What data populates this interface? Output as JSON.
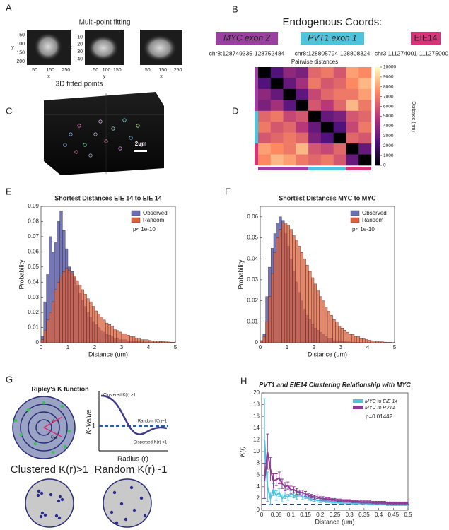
{
  "panel_labels": [
    "A",
    "B",
    "C",
    "D",
    "E",
    "F",
    "G",
    "H"
  ],
  "panel_a": {
    "title": "Multi-point fitting",
    "plots": [
      {
        "xlabel": "x",
        "ylabel": "y",
        "xlim": [
          0,
          280
        ],
        "ylim": [
          20,
          220
        ],
        "xticks": [
          50,
          150,
          250
        ],
        "yticks": [
          50,
          100,
          150,
          200
        ]
      },
      {
        "xlabel": "y",
        "ylabel": "z",
        "xlim": [
          0,
          180
        ],
        "ylim": [
          0,
          48
        ],
        "xticks": [
          50,
          100,
          150
        ],
        "yticks": [
          10,
          20,
          30,
          40
        ]
      },
      {
        "xlabel": "x",
        "xlim": [
          0,
          280
        ],
        "xticks": [
          50,
          150,
          250
        ]
      }
    ]
  },
  "panel_b": {
    "title": "Endogenous Coords:",
    "loci": [
      {
        "name": "MYC exon 2",
        "color": "#9b3fa0",
        "coords": "chr8:128749335-128752484"
      },
      {
        "name": "PVT1 exon 1",
        "color": "#4fc3dc",
        "coords": "chr8:128805794-128808324"
      },
      {
        "name": "EIE14",
        "color": "#d6337a",
        "coords": "chr3:111274001-111275000"
      }
    ]
  },
  "panel_c": {
    "title": "3D fitted points",
    "scale_bar": "2um"
  },
  "panel_d": {
    "title": "Pairwise distances",
    "colorbar_label": "Distance (nm)",
    "clim": [
      0,
      10000
    ],
    "ticks": [
      0,
      1000,
      2000,
      3000,
      4000,
      5000,
      6000,
      7000,
      8000,
      9000,
      10000
    ],
    "matrix": [
      [
        0,
        2500,
        4000,
        3500,
        6500,
        7000,
        6000,
        8000,
        7500
      ],
      [
        2500,
        0,
        3000,
        4500,
        7000,
        6000,
        6500,
        7500,
        8500
      ],
      [
        4000,
        3000,
        0,
        2800,
        5500,
        6500,
        7000,
        7000,
        8000
      ],
      [
        3500,
        4500,
        2800,
        0,
        6000,
        5000,
        6500,
        8500,
        7000
      ],
      [
        6500,
        7000,
        5500,
        6000,
        0,
        3000,
        3500,
        6000,
        6500
      ],
      [
        7000,
        6000,
        6500,
        5000,
        3000,
        0,
        2500,
        5500,
        7000
      ],
      [
        6000,
        6500,
        7000,
        6500,
        3500,
        2500,
        0,
        6500,
        6000
      ],
      [
        8000,
        7500,
        7000,
        8500,
        6000,
        5500,
        6500,
        0,
        3000
      ],
      [
        7500,
        8500,
        8000,
        7000,
        6500,
        7000,
        6000,
        3000,
        0
      ]
    ]
  },
  "panel_g": {
    "title": "Ripley's K function",
    "ylabel": "K-Value",
    "xlabel": "Radius (r)",
    "one_label": "1",
    "curve_labels": [
      "Clustered K(r) >1",
      "Random K(r)~1",
      "Dispersed K(r) <1"
    ],
    "radius_label": "r",
    "radius_next_label": "r",
    "radius_next_subscript": "i+1",
    "examples": [
      "Clustered K(r)>1",
      "Random K(r)~1"
    ]
  },
  "chart_data": [
    {
      "type": "histogram",
      "title": "Shortest Distances EIE 14 to EIE 14",
      "xlabel": "Distance (um)",
      "ylabel": "Probability",
      "annotation": "p< 1e-10",
      "bins": [
        0,
        0.1,
        0.2,
        0.3,
        0.4,
        0.5,
        0.6,
        0.7,
        0.8,
        0.9,
        1,
        1.1,
        1.2,
        1.3,
        1.4,
        1.5,
        1.6,
        1.7,
        1.8,
        1.9,
        2,
        2.1,
        2.2,
        2.3,
        2.4,
        2.5,
        2.6,
        2.7,
        2.8,
        2.9,
        3,
        3.1,
        3.2,
        3.3,
        3.4,
        3.5,
        3.6,
        3.7,
        3.8,
        3.9,
        4,
        4.1,
        4.2,
        4.3,
        4.4,
        4.5,
        4.6,
        4.7,
        4.8,
        4.9,
        5
      ],
      "series": [
        {
          "name": "Observed",
          "color": "#6b6fb5",
          "values": [
            0.004,
            0.027,
            0.045,
            0.07,
            0.06,
            0.066,
            0.08,
            0.087,
            0.074,
            0.062,
            0.05,
            0.047,
            0.043,
            0.038,
            0.033,
            0.028,
            0.024,
            0.02,
            0.017,
            0.014,
            0.012,
            0.01,
            0.008,
            0.007,
            0.006,
            0.005,
            0.004,
            0.003,
            0.003,
            0.002,
            0.002,
            0.002,
            0.001,
            0.001,
            0.001,
            0.001,
            0.001,
            0.0005,
            0.0005,
            0.0005,
            0.0005,
            0.0003,
            0.0003,
            0.0003,
            0.0002,
            0.0002,
            0.0002,
            0.0001,
            0.0001,
            0.0001
          ]
        },
        {
          "name": "Random",
          "color": "#e0603a",
          "values": [
            0.002,
            0.008,
            0.015,
            0.02,
            0.027,
            0.035,
            0.04,
            0.044,
            0.047,
            0.049,
            0.048,
            0.046,
            0.044,
            0.041,
            0.038,
            0.035,
            0.032,
            0.029,
            0.027,
            0.024,
            0.021,
            0.019,
            0.017,
            0.015,
            0.013,
            0.012,
            0.011,
            0.009,
            0.008,
            0.007,
            0.006,
            0.006,
            0.005,
            0.004,
            0.004,
            0.003,
            0.003,
            0.002,
            0.002,
            0.002,
            0.0015,
            0.0013,
            0.0011,
            0.001,
            0.0008,
            0.0007,
            0.0006,
            0.0005,
            0.0004,
            0.0003
          ]
        }
      ],
      "xlim": [
        0,
        5
      ],
      "ylim": [
        0,
        0.09
      ],
      "xticks": [
        0,
        1,
        2,
        3,
        4,
        5
      ],
      "yticks": [
        0,
        0.01,
        0.02,
        0.03,
        0.04,
        0.05,
        0.06,
        0.07,
        0.08,
        0.09
      ],
      "legend": "upper right"
    },
    {
      "type": "histogram",
      "title": "Shortest Distances MYC to MYC",
      "xlabel": "Distance (um)",
      "ylabel": "Probability",
      "annotation": "p< 1e-10",
      "bins": [
        0,
        0.1,
        0.2,
        0.3,
        0.4,
        0.5,
        0.6,
        0.7,
        0.8,
        0.9,
        1,
        1.1,
        1.2,
        1.3,
        1.4,
        1.5,
        1.6,
        1.7,
        1.8,
        1.9,
        2,
        2.1,
        2.2,
        2.3,
        2.4,
        2.5,
        2.6,
        2.7,
        2.8,
        2.9,
        3,
        3.1,
        3.2,
        3.3,
        3.4,
        3.5,
        3.6,
        3.7,
        3.8,
        3.9,
        4,
        4.1,
        4.2,
        4.3,
        4.4,
        4.5,
        4.6,
        4.7,
        4.8,
        4.9,
        5
      ],
      "series": [
        {
          "name": "Observed",
          "color": "#6b6fb5",
          "values": [
            0.001,
            0.004,
            0.022,
            0.036,
            0.045,
            0.052,
            0.057,
            0.06,
            0.058,
            0.052,
            0.046,
            0.04,
            0.034,
            0.029,
            0.024,
            0.02,
            0.016,
            0.013,
            0.011,
            0.009,
            0.007,
            0.006,
            0.005,
            0.004,
            0.003,
            0.002,
            0.002,
            0.001,
            0.001,
            0.001,
            0.0008,
            0.0006,
            0.0005,
            0.0004,
            0.0003,
            0.0002,
            0.0002,
            0.0001,
            0.0001,
            0.0001,
            0.0001,
            0,
            0,
            0,
            0,
            0,
            0,
            0,
            0,
            0
          ]
        },
        {
          "name": "Random",
          "color": "#e0603a",
          "values": [
            0.001,
            0.003,
            0.01,
            0.022,
            0.033,
            0.043,
            0.05,
            0.054,
            0.057,
            0.057,
            0.056,
            0.054,
            0.051,
            0.049,
            0.046,
            0.043,
            0.04,
            0.037,
            0.034,
            0.031,
            0.028,
            0.025,
            0.022,
            0.02,
            0.017,
            0.015,
            0.013,
            0.011,
            0.01,
            0.008,
            0.007,
            0.006,
            0.005,
            0.004,
            0.004,
            0.003,
            0.003,
            0.002,
            0.002,
            0.0015,
            0.0012,
            0.001,
            0.0008,
            0.0007,
            0.0005,
            0.0004,
            0.0003,
            0.0002,
            0.0002,
            0.0001
          ]
        }
      ],
      "xlim": [
        0,
        5
      ],
      "ylim": [
        0,
        0.065
      ],
      "xticks": [
        0,
        1,
        2,
        3,
        4,
        5
      ],
      "yticks": [
        0,
        0.01,
        0.02,
        0.03,
        0.04,
        0.05,
        0.06
      ],
      "legend": "upper right"
    },
    {
      "type": "line",
      "title": "PVT1 and EIE14 Clustering Relationship with MYC",
      "xlabel": "Distance (um)",
      "ylabel": "K(r)",
      "annotation": "p=0.01442",
      "reference_line": 1,
      "x": [
        0.01,
        0.02,
        0.03,
        0.04,
        0.05,
        0.06,
        0.07,
        0.08,
        0.09,
        0.1,
        0.11,
        0.12,
        0.13,
        0.14,
        0.15,
        0.16,
        0.17,
        0.18,
        0.19,
        0.2,
        0.21,
        0.22,
        0.23,
        0.24,
        0.25,
        0.26,
        0.27,
        0.28,
        0.29,
        0.3,
        0.31,
        0.32,
        0.33,
        0.34,
        0.35,
        0.36,
        0.37,
        0.38,
        0.39,
        0.4,
        0.41,
        0.42,
        0.43,
        0.44,
        0.45,
        0.46,
        0.47,
        0.48,
        0.49,
        0.5
      ],
      "series": [
        {
          "name": "MYC to EIE 14",
          "color": "#4fc3dc",
          "values": [
            12,
            4,
            2,
            3.5,
            2.5,
            3,
            2,
            2.5,
            2.2,
            2.8,
            2.5,
            2.3,
            2.8,
            2.2,
            2.3,
            2,
            1.9,
            1.8,
            1.7,
            1.6,
            1.6,
            1.5,
            1.5,
            1.4,
            1.4,
            1.4,
            1.3,
            1.3,
            1.3,
            1.3,
            1.2,
            1.2,
            1.2,
            1.2,
            1.2,
            1.1,
            1.1,
            1.1,
            1.1,
            1.1,
            1.1,
            1.1,
            1,
            1,
            1,
            1,
            1,
            1,
            1,
            1
          ],
          "errors": [
            7,
            2.5,
            1,
            1,
            0.8,
            0.7,
            0.6,
            0.5,
            0.5,
            0.5,
            0.4,
            0.4,
            0.4,
            0.4,
            0.3,
            0.3,
            0.3,
            0.3,
            0.3,
            0.3,
            0.2,
            0.2,
            0.2,
            0.2,
            0.2,
            0.2,
            0.2,
            0.2,
            0.2,
            0.2,
            0.2,
            0.2,
            0.2,
            0.2,
            0.2,
            0.2,
            0.2,
            0.2,
            0.2,
            0.2,
            0.2,
            0.2,
            0.2,
            0.2,
            0.2,
            0.2,
            0.2,
            0.2,
            0.2,
            0.2
          ]
        },
        {
          "name": "MYC to PVT1",
          "color": "#8e3a96",
          "values": [
            5,
            10,
            7,
            5,
            5.2,
            5.5,
            4.5,
            4,
            4.2,
            3.5,
            3.5,
            3.2,
            3,
            3,
            2.8,
            2.5,
            2.4,
            2.2,
            2.3,
            2,
            2,
            1.9,
            1.9,
            1.8,
            1.8,
            1.7,
            1.7,
            1.6,
            1.6,
            1.6,
            1.5,
            1.5,
            1.5,
            1.4,
            1.4,
            1.4,
            1.4,
            1.3,
            1.3,
            1.3,
            1.3,
            1.3,
            1.2,
            1.2,
            1.2,
            1.2,
            1.2,
            1.2,
            1.2,
            1.2
          ],
          "errors": [
            3,
            3,
            2,
            1.2,
            1,
            1,
            0.8,
            0.7,
            0.6,
            0.6,
            0.5,
            0.5,
            0.4,
            0.4,
            0.4,
            0.3,
            0.3,
            0.3,
            0.3,
            0.3,
            0.3,
            0.2,
            0.2,
            0.2,
            0.2,
            0.2,
            0.2,
            0.2,
            0.2,
            0.2,
            0.2,
            0.2,
            0.2,
            0.2,
            0.2,
            0.2,
            0.2,
            0.2,
            0.2,
            0.2,
            0.2,
            0.2,
            0.2,
            0.2,
            0.2,
            0.2,
            0.2,
            0.2,
            0.2,
            0.2
          ]
        }
      ],
      "xlim": [
        0,
        0.5
      ],
      "ylim": [
        0,
        20
      ],
      "xticks": [
        0,
        0.05,
        0.1,
        0.15,
        0.2,
        0.25,
        0.3,
        0.35,
        0.4,
        0.45,
        0.5
      ],
      "yticks": [
        0,
        2,
        4,
        6,
        8,
        10,
        12,
        14,
        16,
        18,
        20
      ],
      "legend": "upper right"
    }
  ]
}
